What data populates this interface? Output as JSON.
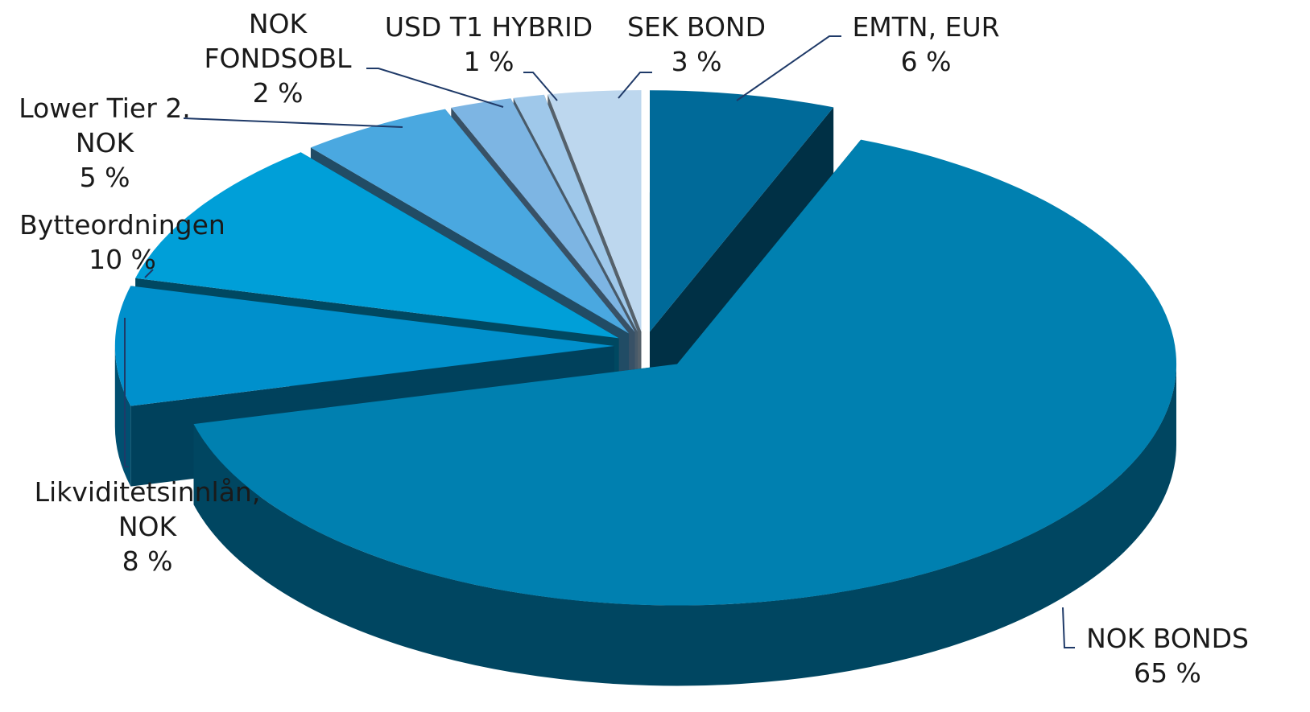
{
  "chart_data": {
    "type": "pie3d",
    "categories": [
      "EMTN, EUR",
      "NOK BONDS",
      "Likviditetsinnlån, NOK",
      "Bytteordningen",
      "Lower Tier 2. NOK",
      "NOK FONDSOBL",
      "USD T1 HYBRID",
      "SEK BOND"
    ],
    "values": [
      6,
      65,
      8,
      10,
      5,
      2,
      1,
      3
    ],
    "value_labels": [
      "6 %",
      "65 %",
      "8 %",
      "10 %",
      "5 %",
      "2 %",
      "1 %",
      "3 %"
    ],
    "colors": [
      "#006a99",
      "#0080b0",
      "#0090cc",
      "#009fd8",
      "#4aa8e0",
      "#7db5e3",
      "#9fc8ea",
      "#bdd7ee"
    ]
  }
}
